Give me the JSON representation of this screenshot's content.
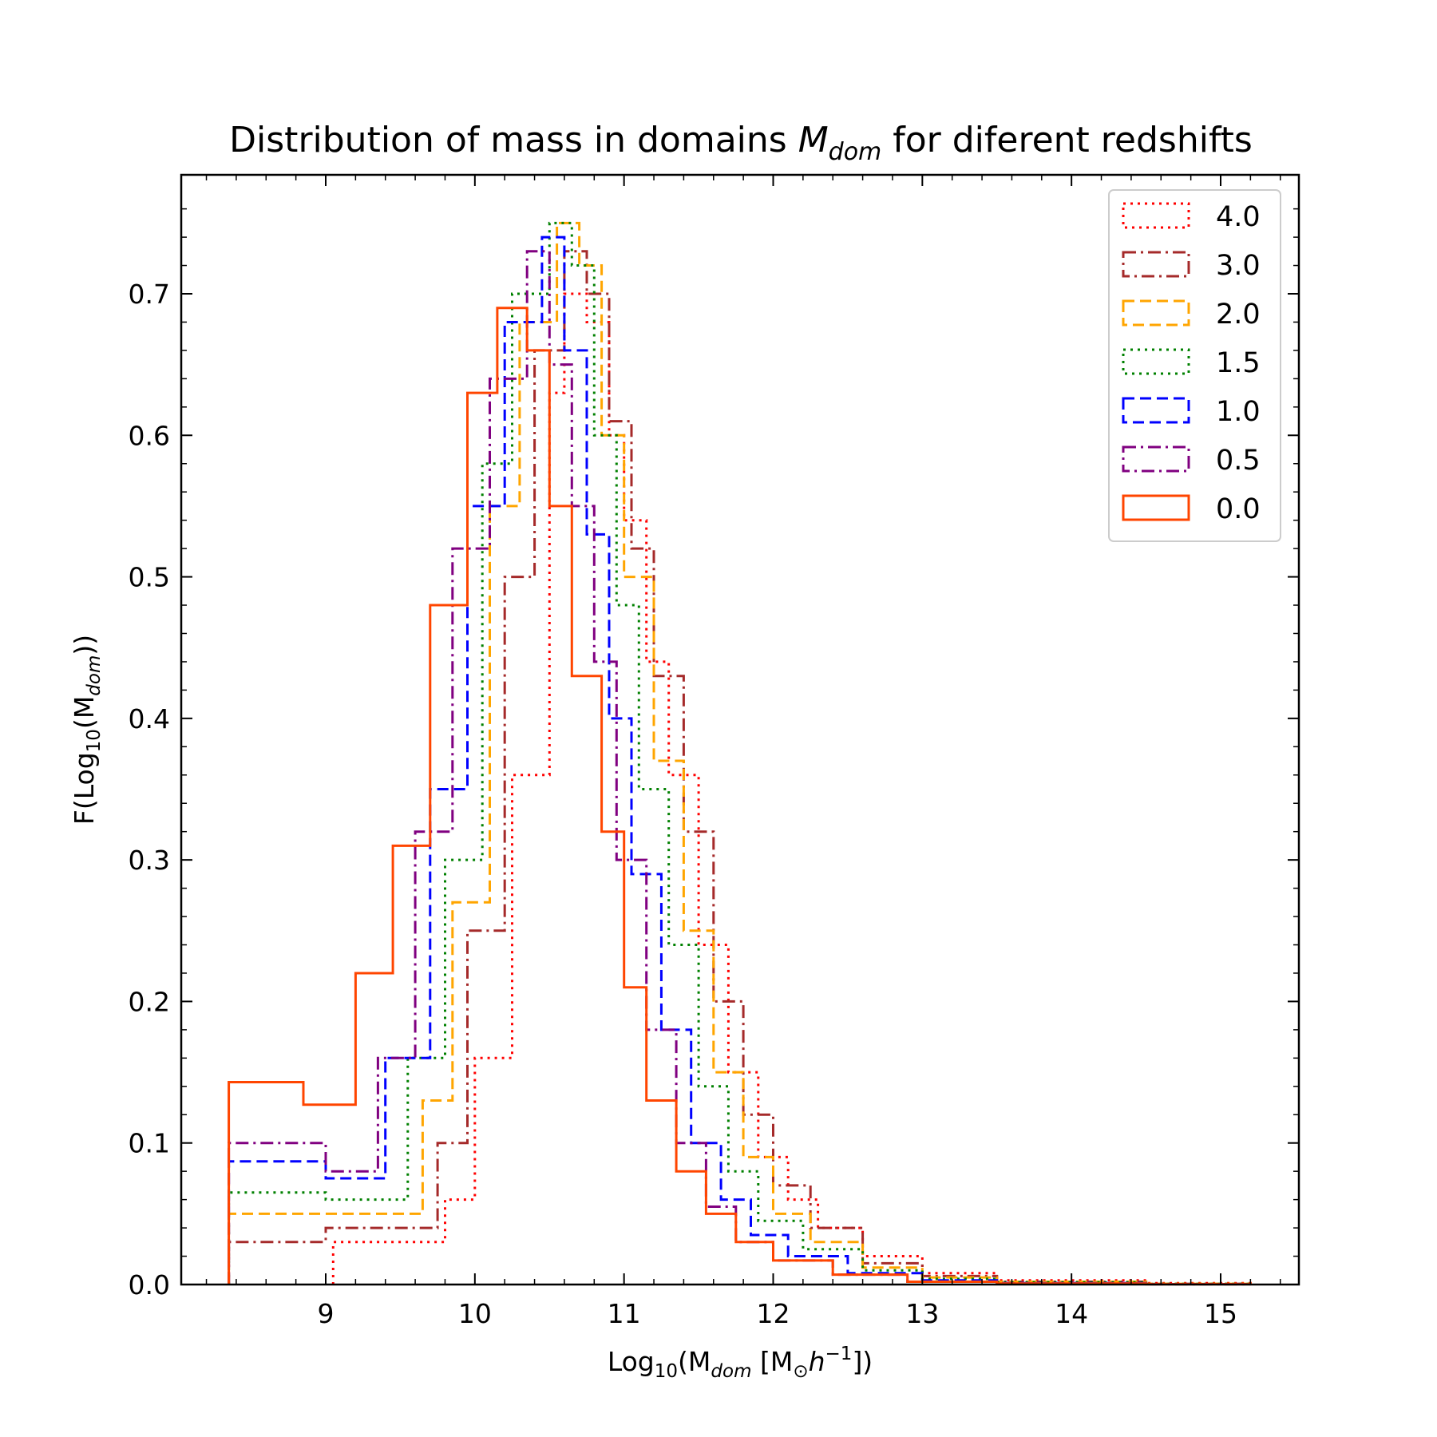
{
  "chart_data": {
    "type": "histogram-step",
    "title": "Distribution of mass in domains M_dom for diferent redshifts",
    "title_parts": {
      "pre": "Distribution of mass in domains ",
      "sym": "M",
      "sub": "dom",
      "post": " for diferent redshifts"
    },
    "xlabel_parts": {
      "pre": "Log",
      "sub1": "10",
      "mid": "(M",
      "sub2": "dom",
      "unit": " [M",
      "sun": "⊙",
      "h": "h",
      "exp": "−1",
      "post": "])"
    },
    "ylabel_parts": {
      "pre": "F(Log",
      "sub1": "10",
      "mid": "(M",
      "sub2": "dom",
      "post": "))"
    },
    "xlim": [
      8.0,
      15.5
    ],
    "ylim": [
      0.0,
      0.765
    ],
    "xticks": [
      9,
      10,
      11,
      12,
      13,
      14,
      15
    ],
    "xtick_labels": [
      "9",
      "10",
      "11",
      "12",
      "13",
      "14",
      "15"
    ],
    "yticks": [
      0.0,
      0.1,
      0.2,
      0.3,
      0.4,
      0.5,
      0.6,
      0.7
    ],
    "ytick_labels": [
      "0.0",
      "0.1",
      "0.2",
      "0.3",
      "0.4",
      "0.5",
      "0.6",
      "0.7"
    ],
    "xminor_step": 0.2,
    "yminor_step": 0.02,
    "legend_position": "top-right",
    "series": [
      {
        "name": "4.0",
        "color": "#ff0000",
        "style": "dotted",
        "x": [
          9.05,
          9.8,
          10.0,
          10.25,
          10.5,
          10.6,
          10.75,
          10.9,
          11.0,
          11.15,
          11.3,
          11.5,
          11.7,
          11.9,
          12.1,
          12.3,
          12.6,
          13.0,
          13.5,
          14.5,
          15.2
        ],
        "y": [
          0.03,
          0.06,
          0.16,
          0.36,
          0.63,
          0.7,
          0.68,
          0.6,
          0.54,
          0.44,
          0.36,
          0.24,
          0.15,
          0.09,
          0.06,
          0.04,
          0.02,
          0.008,
          0.003,
          0.001,
          0.0
        ]
      },
      {
        "name": "3.0",
        "color": "#a52a2a",
        "style": "dashdot",
        "x": [
          8.35,
          9.0,
          9.75,
          9.95,
          10.2,
          10.4,
          10.6,
          10.75,
          10.9,
          11.05,
          11.2,
          11.4,
          11.6,
          11.8,
          12.0,
          12.25,
          12.6,
          13.0,
          13.5,
          14.5,
          15.2
        ],
        "y": [
          0.03,
          0.04,
          0.1,
          0.25,
          0.5,
          0.66,
          0.73,
          0.7,
          0.61,
          0.52,
          0.43,
          0.32,
          0.2,
          0.12,
          0.07,
          0.04,
          0.015,
          0.006,
          0.002,
          0.0005,
          0.0
        ]
      },
      {
        "name": "2.0",
        "color": "#ffa500",
        "style": "dashed",
        "x": [
          8.35,
          9.0,
          9.65,
          9.85,
          10.1,
          10.3,
          10.55,
          10.7,
          10.85,
          11.0,
          11.2,
          11.4,
          11.6,
          11.8,
          12.0,
          12.25,
          12.6,
          13.0,
          13.5,
          14.5,
          15.2
        ],
        "y": [
          0.05,
          0.05,
          0.13,
          0.27,
          0.55,
          0.68,
          0.75,
          0.72,
          0.6,
          0.5,
          0.37,
          0.25,
          0.15,
          0.09,
          0.05,
          0.03,
          0.012,
          0.005,
          0.002,
          0.0005,
          0.0
        ]
      },
      {
        "name": "1.5",
        "color": "#008000",
        "style": "dotted",
        "x": [
          8.35,
          9.0,
          9.55,
          9.8,
          10.05,
          10.25,
          10.5,
          10.65,
          10.8,
          10.95,
          11.1,
          11.3,
          11.5,
          11.7,
          11.9,
          12.2,
          12.6,
          13.0,
          13.5,
          14.5,
          15.2
        ],
        "y": [
          0.065,
          0.06,
          0.16,
          0.3,
          0.58,
          0.7,
          0.75,
          0.72,
          0.6,
          0.48,
          0.35,
          0.24,
          0.14,
          0.08,
          0.045,
          0.025,
          0.01,
          0.004,
          0.0015,
          0.0004,
          0.0
        ]
      },
      {
        "name": "1.0",
        "color": "#0000ff",
        "style": "dashed",
        "x": [
          8.35,
          9.0,
          9.4,
          9.7,
          9.95,
          10.2,
          10.45,
          10.6,
          10.75,
          10.9,
          11.05,
          11.25,
          11.45,
          11.65,
          11.85,
          12.1,
          12.5,
          13.0,
          13.5,
          14.5,
          15.2
        ],
        "y": [
          0.087,
          0.075,
          0.16,
          0.35,
          0.55,
          0.68,
          0.74,
          0.66,
          0.53,
          0.4,
          0.29,
          0.18,
          0.1,
          0.06,
          0.035,
          0.02,
          0.008,
          0.003,
          0.001,
          0.0003,
          0.0
        ]
      },
      {
        "name": "0.5",
        "color": "#800080",
        "style": "dashdot",
        "x": [
          8.35,
          9.0,
          9.35,
          9.6,
          9.85,
          10.1,
          10.35,
          10.5,
          10.65,
          10.8,
          10.95,
          11.15,
          11.35,
          11.55,
          11.75,
          12.0,
          12.4,
          12.9,
          13.5,
          14.5,
          15.2
        ],
        "y": [
          0.1,
          0.08,
          0.16,
          0.32,
          0.52,
          0.64,
          0.73,
          0.65,
          0.55,
          0.44,
          0.3,
          0.18,
          0.1,
          0.055,
          0.03,
          0.017,
          0.007,
          0.002,
          0.0008,
          0.0002,
          0.0
        ]
      },
      {
        "name": "0.0",
        "color": "#ff4500",
        "style": "solid",
        "x": [
          8.35,
          8.85,
          9.2,
          9.45,
          9.7,
          9.95,
          10.15,
          10.35,
          10.5,
          10.65,
          10.85,
          11.0,
          11.15,
          11.35,
          11.55,
          11.75,
          12.0,
          12.4,
          12.9,
          13.5,
          14.5,
          15.2
        ],
        "y": [
          0.143,
          0.127,
          0.22,
          0.31,
          0.48,
          0.63,
          0.69,
          0.66,
          0.55,
          0.43,
          0.32,
          0.21,
          0.13,
          0.08,
          0.05,
          0.03,
          0.017,
          0.007,
          0.002,
          0.0007,
          0.0002,
          0.0
        ]
      }
    ]
  }
}
